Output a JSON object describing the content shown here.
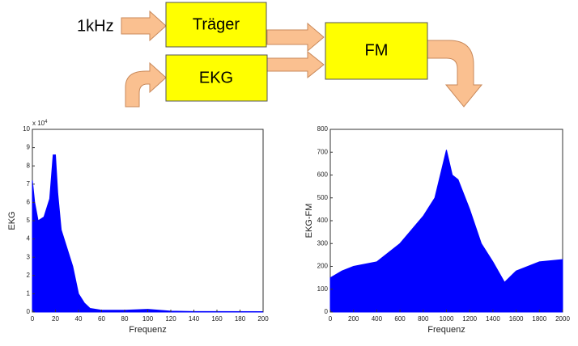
{
  "diagram": {
    "input_label": "1kHz",
    "nodes": [
      {
        "label": "Träger"
      },
      {
        "label": "EKG"
      },
      {
        "label": "FM"
      }
    ]
  },
  "chart_data": [
    {
      "type": "area",
      "color": "#0000ff",
      "x_label": "Frequenz",
      "y_label": "EKG",
      "y_multiplier": {
        "base": "x 10",
        "exponent": "4"
      },
      "x": [
        0,
        2,
        5,
        10,
        15,
        18,
        20,
        22,
        25,
        30,
        35,
        40,
        45,
        50,
        60,
        80,
        100,
        120,
        140,
        200
      ],
      "values": [
        72000,
        60000,
        50000,
        52000,
        62000,
        86000,
        86000,
        65000,
        45000,
        35000,
        25000,
        10000,
        5000,
        2000,
        1000,
        1000,
        1500,
        500,
        300,
        200
      ],
      "xlim": [
        0,
        200
      ],
      "xticks": [
        0,
        20,
        40,
        60,
        80,
        100,
        120,
        140,
        160,
        180,
        200
      ],
      "ylim": [
        0,
        100000
      ],
      "yticks": [
        {
          "value": 0,
          "label": "0"
        },
        {
          "value": 10000,
          "label": "1"
        },
        {
          "value": 20000,
          "label": "2"
        },
        {
          "value": 30000,
          "label": "3"
        },
        {
          "value": 40000,
          "label": "4"
        },
        {
          "value": 50000,
          "label": "5"
        },
        {
          "value": 60000,
          "label": "6"
        },
        {
          "value": 70000,
          "label": "7"
        },
        {
          "value": 80000,
          "label": "8"
        },
        {
          "value": 90000,
          "label": "9"
        },
        {
          "value": 100000,
          "label": "10"
        }
      ]
    },
    {
      "type": "area",
      "color": "#0000ff",
      "x_label": "Frequenz",
      "y_label": "EKG-FM",
      "x": [
        0,
        100,
        200,
        400,
        600,
        800,
        900,
        1000,
        1050,
        1100,
        1200,
        1300,
        1400,
        1500,
        1600,
        1800,
        2000
      ],
      "values": [
        150,
        180,
        200,
        220,
        300,
        420,
        500,
        710,
        600,
        580,
        450,
        300,
        220,
        130,
        180,
        220,
        230
      ],
      "xlim": [
        0,
        2000
      ],
      "xticks": [
        0,
        200,
        400,
        600,
        800,
        1000,
        1200,
        1400,
        1600,
        1800,
        2000
      ],
      "ylim": [
        0,
        800
      ],
      "yticks": [
        0,
        100,
        200,
        300,
        400,
        500,
        600,
        700,
        800
      ]
    }
  ]
}
